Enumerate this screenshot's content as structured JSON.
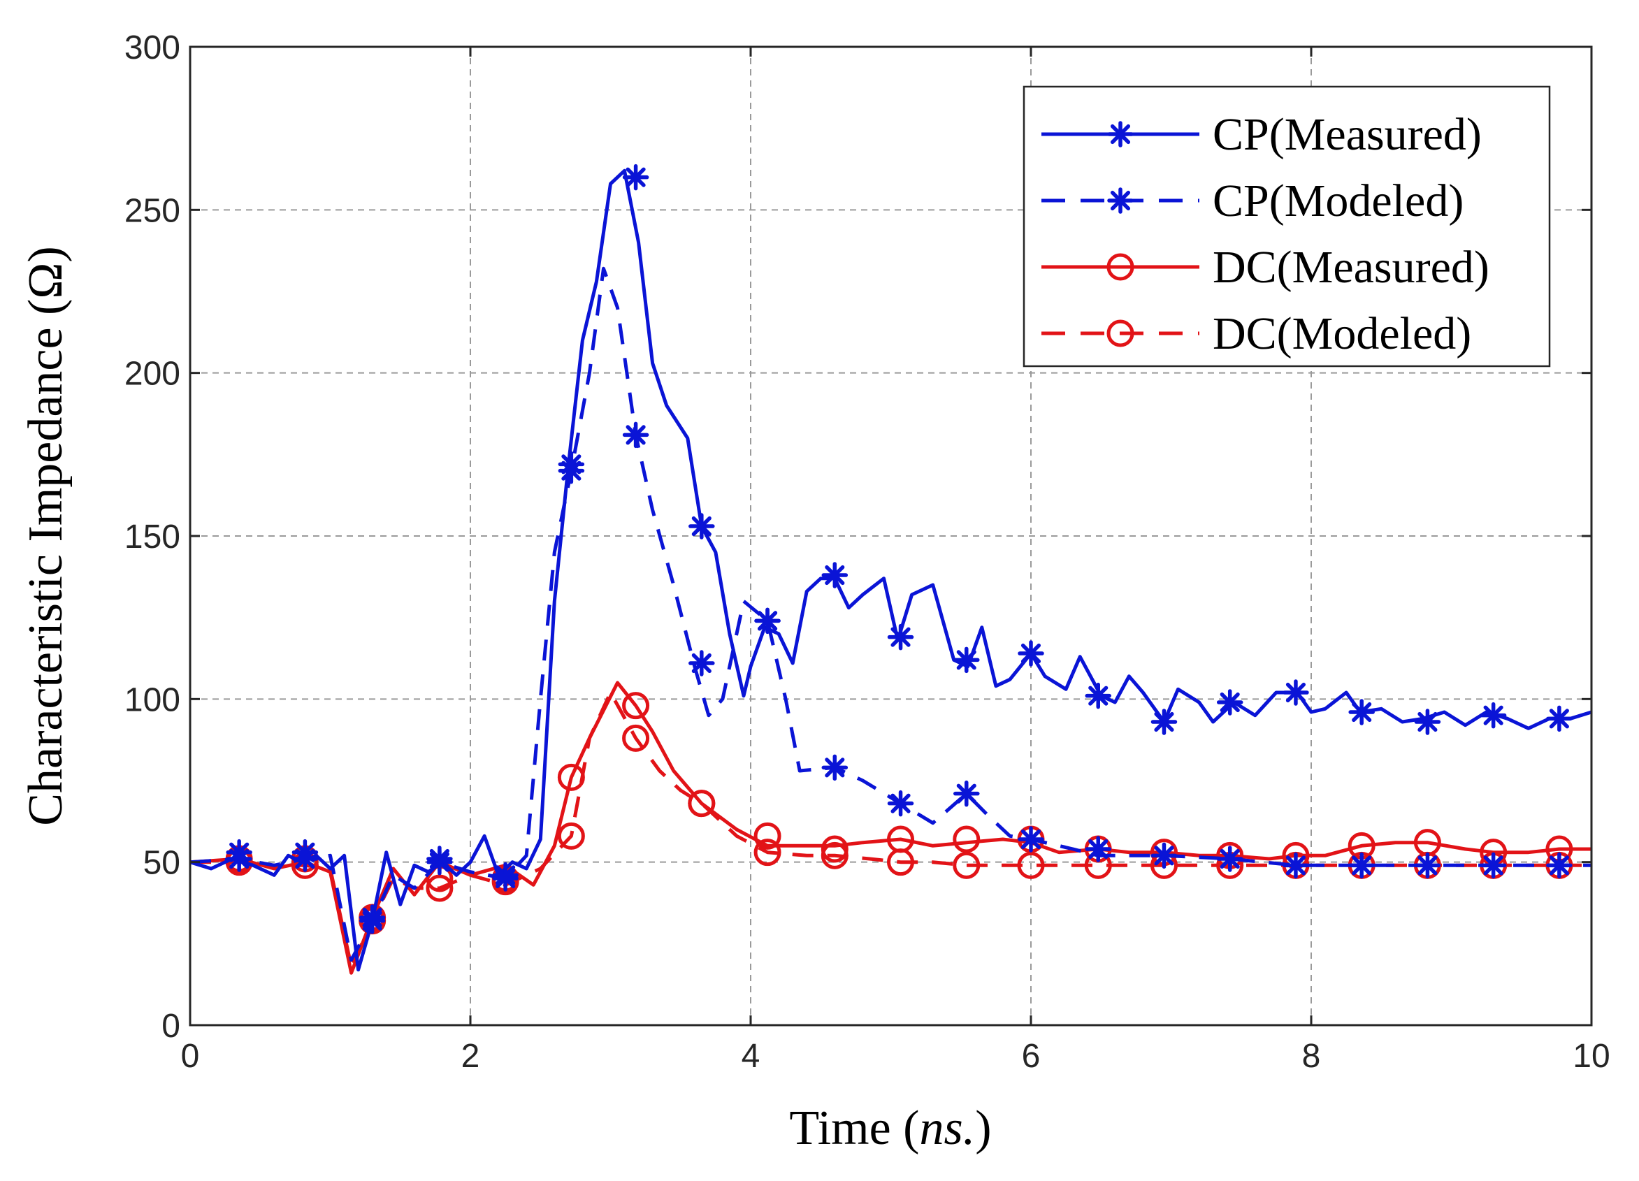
{
  "chart_data": {
    "type": "line",
    "xlabel_main": "Time (",
    "xlabel_italic": "ns.",
    "xlabel_close": ")",
    "ylabel": "Characteristic Impedance (Ω)",
    "xlim": [
      0,
      10
    ],
    "ylim": [
      0,
      300
    ],
    "xticks": [
      0,
      2,
      4,
      6,
      8,
      10
    ],
    "yticks": [
      0,
      50,
      100,
      150,
      200,
      250,
      300
    ],
    "grid": true,
    "legend_position": "top-right",
    "series": [
      {
        "name": "CP(Measured)",
        "color": "#0a14d6",
        "dash": "solid",
        "marker": "asterisk",
        "x": [
          0,
          0.15,
          0.3,
          0.45,
          0.6,
          0.7,
          0.8,
          0.9,
          1.0,
          1.1,
          1.2,
          1.3,
          1.4,
          1.5,
          1.6,
          1.7,
          1.8,
          1.9,
          2.0,
          2.1,
          2.2,
          2.3,
          2.4,
          2.5,
          2.6,
          2.7,
          2.8,
          2.9,
          3.0,
          3.1,
          3.2,
          3.3,
          3.4,
          3.55,
          3.65,
          3.75,
          3.85,
          3.95,
          4.0,
          4.1,
          4.2,
          4.3,
          4.4,
          4.5,
          4.6,
          4.7,
          4.8,
          4.95,
          5.05,
          5.15,
          5.3,
          5.45,
          5.55,
          5.65,
          5.75,
          5.85,
          6.0,
          6.1,
          6.25,
          6.35,
          6.5,
          6.6,
          6.7,
          6.8,
          6.95,
          7.05,
          7.2,
          7.3,
          7.45,
          7.6,
          7.75,
          7.9,
          8.0,
          8.1,
          8.25,
          8.35,
          8.5,
          8.65,
          8.8,
          8.95,
          9.1,
          9.25,
          9.4,
          9.55,
          9.7,
          9.85,
          10.0
        ],
        "y": [
          50,
          48,
          51,
          49,
          46,
          52,
          50,
          52,
          48,
          52,
          17,
          32,
          53,
          37,
          49,
          47,
          50,
          46,
          50,
          58,
          46,
          50,
          48,
          57,
          130,
          172,
          210,
          228,
          258,
          262,
          240,
          203,
          190,
          180,
          153,
          145,
          120,
          101,
          110,
          122,
          120,
          111,
          133,
          137,
          137,
          128,
          132,
          137,
          118,
          132,
          135,
          112,
          110,
          122,
          104,
          106,
          114,
          107,
          103,
          113,
          101,
          99,
          107,
          102,
          93,
          103,
          99,
          93,
          99,
          95,
          102,
          102,
          96,
          97,
          102,
          96,
          97,
          93,
          94,
          96,
          92,
          96,
          94,
          91,
          94,
          94,
          96
        ],
        "markers_x": [
          0.35,
          0.82,
          1.3,
          1.78,
          2.25,
          2.72,
          3.18,
          3.65,
          4.12,
          4.6,
          5.07,
          5.54,
          6.0,
          6.48,
          6.95,
          7.42,
          7.89,
          8.36,
          8.83,
          9.3,
          9.77
        ],
        "markers_y": [
          53,
          53,
          33,
          51,
          46,
          172,
          260,
          153,
          124,
          138,
          119,
          112,
          114,
          101,
          93,
          99,
          102,
          96,
          93,
          95,
          94
        ]
      },
      {
        "name": "CP(Modeled)",
        "color": "#0a14d6",
        "dash": "dashed",
        "marker": "asterisk",
        "x": [
          0,
          0.35,
          0.6,
          0.82,
          1.0,
          1.15,
          1.3,
          1.45,
          1.6,
          1.78,
          2.0,
          2.25,
          2.4,
          2.5,
          2.6,
          2.72,
          2.85,
          2.95,
          3.05,
          3.18,
          3.3,
          3.45,
          3.6,
          3.7,
          3.8,
          3.95,
          4.12,
          4.25,
          4.35,
          4.6,
          4.8,
          5.07,
          5.3,
          5.54,
          5.7,
          5.85,
          6.0,
          6.3,
          6.48,
          6.95,
          7.42,
          7.89,
          8.36,
          8.83,
          9.3,
          9.77,
          10.0
        ],
        "y": [
          50,
          51,
          49,
          51,
          52,
          20,
          32,
          46,
          42,
          50,
          47,
          45,
          52,
          100,
          145,
          170,
          200,
          232,
          220,
          181,
          158,
          135,
          110,
          95,
          100,
          130,
          124,
          100,
          78,
          79,
          75,
          68,
          62,
          71,
          64,
          58,
          57,
          54,
          52,
          52,
          51,
          49,
          49,
          49,
          49,
          49,
          49
        ],
        "markers_x": [
          0.35,
          0.82,
          1.3,
          1.78,
          2.25,
          2.72,
          3.18,
          3.65,
          4.12,
          4.6,
          5.07,
          5.54,
          6.0,
          6.48,
          6.95,
          7.42,
          7.89,
          8.36,
          8.83,
          9.3,
          9.77
        ],
        "markers_y": [
          51,
          51,
          32,
          50,
          45,
          170,
          181,
          111,
          124,
          79,
          68,
          71,
          57,
          54,
          52,
          51,
          49,
          49,
          49,
          49,
          49
        ]
      },
      {
        "name": "DC(Measured)",
        "color": "#e21317",
        "dash": "solid",
        "marker": "circle",
        "x": [
          0,
          0.35,
          0.6,
          0.82,
          1.0,
          1.15,
          1.3,
          1.45,
          1.6,
          1.78,
          2.0,
          2.25,
          2.45,
          2.6,
          2.72,
          2.85,
          3.05,
          3.18,
          3.3,
          3.45,
          3.65,
          3.9,
          4.12,
          4.3,
          4.6,
          4.8,
          5.07,
          5.3,
          5.54,
          5.8,
          6.0,
          6.2,
          6.48,
          6.7,
          6.95,
          7.2,
          7.42,
          7.7,
          7.89,
          8.1,
          8.36,
          8.6,
          8.83,
          9.1,
          9.3,
          9.55,
          9.77,
          10.0
        ],
        "y": [
          50,
          51,
          48,
          50,
          47,
          16,
          33,
          48,
          40,
          50,
          46,
          49,
          43,
          55,
          76,
          88,
          105,
          98,
          90,
          78,
          68,
          60,
          55,
          55,
          55,
          56,
          57,
          55,
          56,
          57,
          56,
          53,
          54,
          53,
          53,
          52,
          52,
          51,
          52,
          52,
          55,
          56,
          56,
          54,
          53,
          53,
          54,
          54
        ],
        "markers_x": [
          0.35,
          0.82,
          1.3,
          1.78,
          2.25,
          2.72,
          3.18,
          3.65,
          4.12,
          4.6,
          5.07,
          5.54,
          6.0,
          6.48,
          6.95,
          7.42,
          7.89,
          8.36,
          8.83,
          9.3,
          9.77
        ],
        "markers_y": [
          51,
          51,
          33,
          45,
          45,
          76,
          98,
          68,
          58,
          54,
          57,
          57,
          57,
          54,
          53,
          52,
          52,
          55,
          56,
          53,
          54
        ]
      },
      {
        "name": "DC(Modeled)",
        "color": "#e21317",
        "dash": "dashed",
        "marker": "circle",
        "x": [
          0,
          0.35,
          0.6,
          0.82,
          1.0,
          1.15,
          1.3,
          1.45,
          1.6,
          1.78,
          2.0,
          2.25,
          2.5,
          2.72,
          2.85,
          3.0,
          3.18,
          3.35,
          3.5,
          3.65,
          3.9,
          4.12,
          4.4,
          4.6,
          4.85,
          5.07,
          5.3,
          5.54,
          5.8,
          6.0,
          6.48,
          6.95,
          7.42,
          7.89,
          8.36,
          8.83,
          9.3,
          9.77,
          10.0
        ],
        "y": [
          50,
          50,
          49,
          49,
          48,
          18,
          32,
          45,
          42,
          42,
          46,
          43,
          48,
          58,
          88,
          102,
          88,
          78,
          72,
          68,
          58,
          53,
          52,
          52,
          51,
          50,
          50,
          49,
          49,
          49,
          49,
          49,
          49,
          49,
          49,
          49,
          49,
          49,
          49
        ],
        "markers_x": [
          0.35,
          0.82,
          1.3,
          1.78,
          2.25,
          2.72,
          3.18,
          3.65,
          4.12,
          4.6,
          5.07,
          5.54,
          6.0,
          6.48,
          6.95,
          7.42,
          7.89,
          8.36,
          8.83,
          9.3,
          9.77
        ],
        "markers_y": [
          50,
          49,
          32,
          42,
          44,
          58,
          88,
          68,
          53,
          52,
          50,
          49,
          49,
          49,
          49,
          49,
          49,
          49,
          49,
          49,
          49
        ]
      }
    ]
  }
}
